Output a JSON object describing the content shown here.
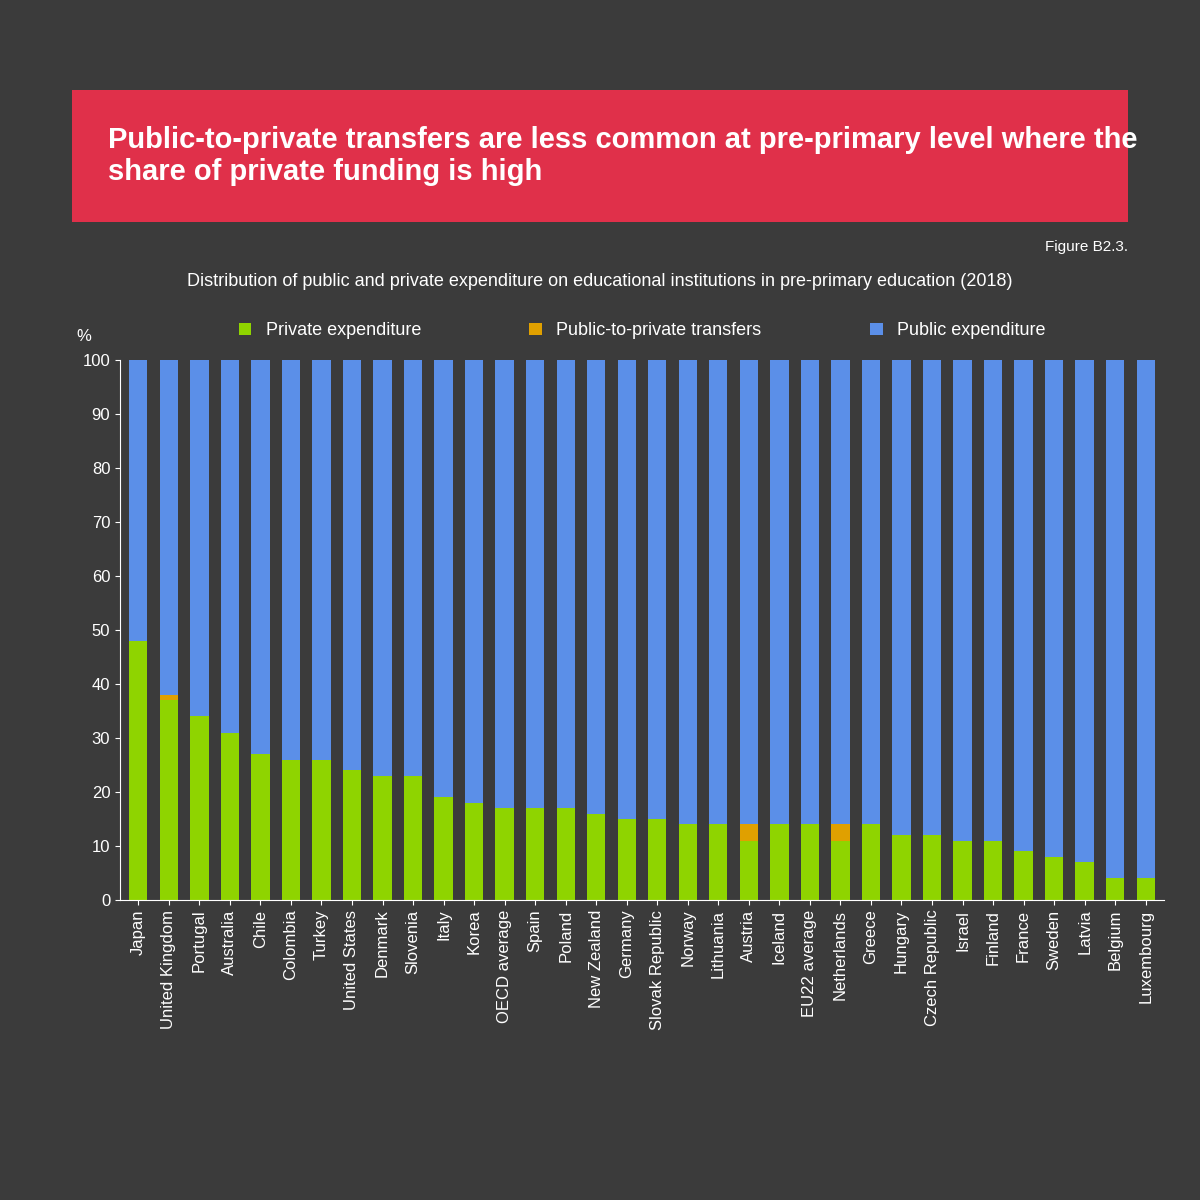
{
  "chart_data": {
    "type": "bar",
    "title": "Public-to-private transfers are less common at pre-primary level where the share of private funding is high",
    "figure_label": "Figure B2.3.",
    "subtitle": "Distribution of public and private expenditure on educational institutions in pre-primary education (2018)",
    "y_label": "%",
    "stacked": true,
    "grid": false,
    "legend": "upper center",
    "categories": [
      "Japan",
      "United Kingdom",
      "Portugal",
      "Australia",
      "Chile",
      "Colombia",
      "Turkey",
      "United States",
      "Denmark",
      "Slovenia",
      "Italy",
      "Korea",
      "OECD average",
      "Spain",
      "Poland",
      "New Zealand",
      "Germany",
      "Slovak Republic",
      "Norway",
      "Lithuania",
      "Austria",
      "Iceland",
      "EU22 average",
      "Netherlands",
      "Greece",
      "Hungary",
      "Czech Republic",
      "Israel",
      "Finland",
      "France",
      "Sweden",
      "Latvia",
      "Belgium",
      "Luxembourg"
    ],
    "series": [
      {
        "name": "Private expenditure",
        "color": "#8fd400",
        "values": [
          48,
          37,
          34,
          31,
          27,
          26,
          26,
          24,
          23,
          23,
          19,
          18,
          17,
          17,
          17,
          16,
          15,
          15,
          14,
          14,
          11,
          14,
          14,
          11,
          14,
          12,
          12,
          11,
          11,
          9,
          8,
          7,
          4,
          4
        ]
      },
      {
        "name": "Public-to-private transfers",
        "color": "#e0a000",
        "values": [
          0,
          1,
          0,
          0,
          0,
          0,
          0,
          0,
          0,
          0,
          0,
          0,
          0,
          0,
          0,
          0,
          0,
          0,
          0,
          0,
          3,
          0,
          0,
          3,
          0,
          0,
          0,
          0,
          0,
          0,
          0,
          0,
          0,
          0
        ]
      },
      {
        "name": "Public expenditure",
        "color": "#5b8fe8",
        "values": [
          52,
          62,
          66,
          69,
          73,
          74,
          74,
          76,
          77,
          77,
          81,
          82,
          83,
          83,
          83,
          84,
          85,
          85,
          86,
          86,
          86,
          86,
          86,
          86,
          86,
          88,
          88,
          89,
          89,
          91,
          92,
          93,
          96,
          96
        ]
      }
    ],
    "ylim": [
      0,
      100
    ],
    "yticks": [
      0,
      10,
      20,
      30,
      40,
      50,
      60,
      70,
      80,
      90,
      100
    ]
  }
}
